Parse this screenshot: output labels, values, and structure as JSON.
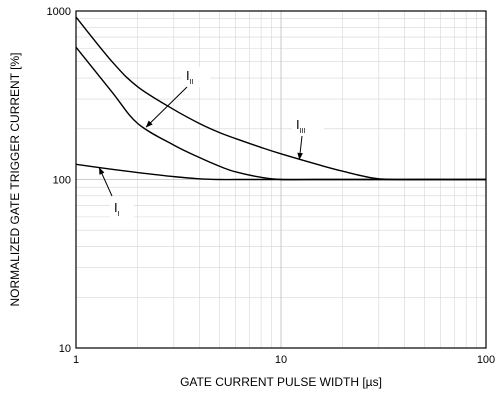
{
  "chart_data": {
    "type": "line",
    "title": "",
    "xlabel": "GATE CURRENT PULSE WIDTH [µs]",
    "ylabel": "NORMALIZED GATE TRIGGER CURRENT [%]",
    "xscale": "log",
    "yscale": "log",
    "xlim": [
      1,
      100
    ],
    "ylim": [
      10,
      1000
    ],
    "x_ticks": [
      "1",
      "10",
      "100"
    ],
    "y_ticks": [
      "10",
      "100",
      "1000"
    ],
    "grid": true,
    "legend": "none",
    "series": [
      {
        "name": "I",
        "sub": "I",
        "x": [
          1,
          1.5,
          2,
          3,
          4,
          5,
          6,
          8,
          10,
          15,
          20,
          30,
          50,
          100
        ],
        "y": [
          123,
          115,
          110,
          104,
          101,
          100,
          100,
          100,
          100,
          100,
          100,
          100,
          100,
          100
        ]
      },
      {
        "name": "I",
        "sub": "II",
        "x": [
          1,
          1.5,
          2,
          3,
          4,
          5,
          6,
          8,
          10,
          15,
          20,
          30,
          50,
          100
        ],
        "y": [
          610,
          330,
          215,
          160,
          135,
          120,
          111,
          103,
          100,
          100,
          100,
          100,
          100,
          100
        ]
      },
      {
        "name": "I",
        "sub": "III",
        "x": [
          1,
          1.5,
          2,
          3,
          4,
          5,
          6,
          8,
          10,
          15,
          20,
          30,
          50,
          100
        ],
        "y": [
          920,
          500,
          355,
          260,
          215,
          190,
          175,
          155,
          142,
          123,
          112,
          101,
          100,
          100
        ]
      }
    ]
  }
}
